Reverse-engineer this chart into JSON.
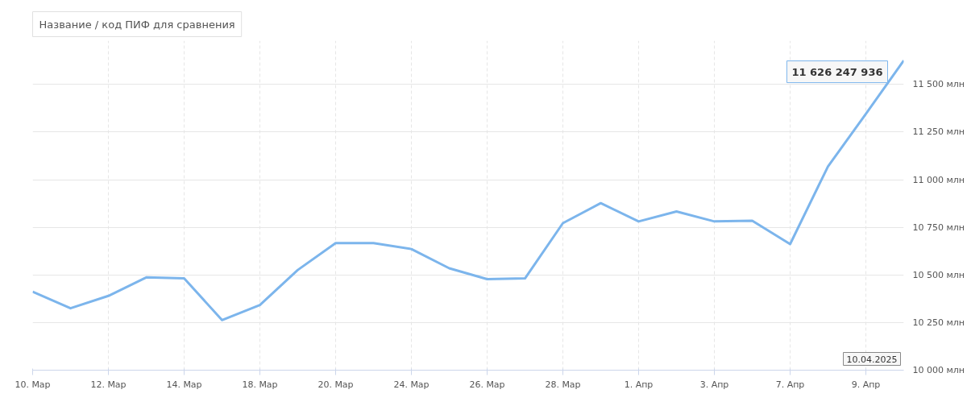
{
  "chart_data": {
    "type": "line",
    "subtitle": "Название / код ПИФ для сравнения",
    "categories": [
      "10. Мар",
      null,
      "12. Мар",
      null,
      "14. Мар",
      null,
      "18. Мар",
      null,
      "20. Мар",
      null,
      "24. Мар",
      null,
      "26. Мар",
      null,
      "28. Мар",
      null,
      "1. Апр",
      null,
      "3. Апр",
      null,
      "7. Апр",
      null,
      "9. Апр",
      null
    ],
    "series": [
      {
        "color": "#7cb5ec",
        "values": [
          10412,
          10325,
          10390,
          10487,
          10482,
          10263,
          10342,
          10526,
          10667,
          10667,
          10636,
          10535,
          10478,
          10482,
          10772,
          10877,
          10781,
          10833,
          10781,
          10785,
          10662,
          11070,
          11346,
          11626
        ]
      }
    ],
    "ylim": [
      10000,
      11730
    ],
    "yticks": [
      {
        "value": 10000,
        "label": "10 000 млн"
      },
      {
        "value": 10250,
        "label": "10 250 млн"
      },
      {
        "value": 10500,
        "label": "10 500 млн"
      },
      {
        "value": 10750,
        "label": "10 750 млн"
      },
      {
        "value": 11000,
        "label": "11 000 млн"
      },
      {
        "value": 11250,
        "label": "11 250 млн"
      },
      {
        "value": 11500,
        "label": "11 500 млн"
      }
    ],
    "grid": true,
    "marker": "none",
    "line_style": "solid",
    "annotations": [
      "11 626 247 936",
      "10.04.2025"
    ]
  }
}
